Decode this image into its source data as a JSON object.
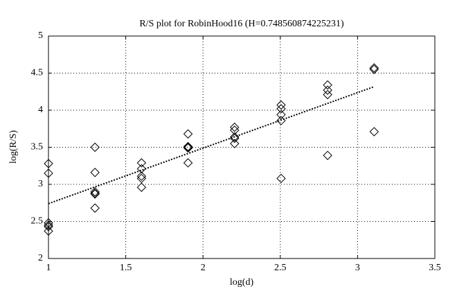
{
  "chart_data": {
    "type": "scatter",
    "title": "R/S plot for RobinHood16 (H=0.748560874225231)",
    "xlabel": "log(d)",
    "ylabel": "log(R/S)",
    "x": [
      1,
      1,
      1,
      1,
      1,
      1,
      1.30103,
      1.30103,
      1.30103,
      1.30103,
      1.30103,
      1.30103,
      1.60206,
      1.60206,
      1.60206,
      1.60206,
      1.60206,
      1.90309,
      1.90309,
      1.90309,
      1.90309,
      1.90309,
      2.20412,
      2.20412,
      2.20412,
      2.20412,
      2.20412,
      2.50515,
      2.50515,
      2.50515,
      2.50515,
      2.50515,
      2.80618,
      2.80618,
      2.80618,
      2.80618,
      3.10721,
      3.10721,
      3.10721
    ],
    "values": [
      3.28,
      3.15,
      2.48,
      2.45,
      2.43,
      2.37,
      3.5,
      3.16,
      2.9,
      2.88,
      2.87,
      2.68,
      3.29,
      3.21,
      3.11,
      3.08,
      2.96,
      3.68,
      3.51,
      3.5,
      3.49,
      3.29,
      3.77,
      3.73,
      3.64,
      3.62,
      3.55,
      4.07,
      4.02,
      3.94,
      3.86,
      3.08,
      4.34,
      4.27,
      4.21,
      3.39,
      4.57,
      4.55,
      3.71
    ],
    "color": "#000000",
    "fit": {
      "x": [
        1,
        3.10721
      ],
      "values": [
        2.74,
        4.317
      ],
      "color": "#000000"
    },
    "xlim": [
      1,
      3.5
    ],
    "xticks": [
      1,
      1.5,
      2,
      2.5,
      3,
      3.5
    ],
    "ylim": [
      2,
      5
    ],
    "yticks": [
      2,
      2.5,
      3,
      3.5,
      4,
      4.5,
      5
    ],
    "grid": true
  }
}
